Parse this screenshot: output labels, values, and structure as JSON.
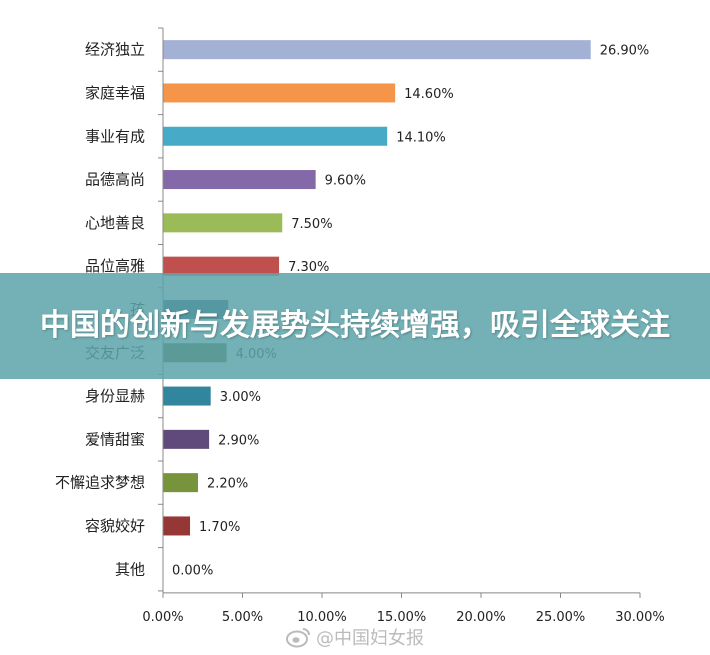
{
  "overlay": {
    "title": "中国的创新与发展势头持续增强，吸引全球关注"
  },
  "watermark": {
    "text": "@中国妇女报",
    "icon": "weibo-icon"
  },
  "chart_data": {
    "type": "bar",
    "orientation": "horizontal",
    "title": "",
    "xlabel": "",
    "ylabel": "",
    "xlim": [
      0,
      30
    ],
    "x_ticks": [
      "0.00%",
      "5.00%",
      "10.00%",
      "15.00%",
      "20.00%",
      "25.00%",
      "30.00%"
    ],
    "grid": false,
    "categories": [
      "经济独立",
      "家庭幸福",
      "事业有成",
      "品德高尚",
      "心地善良",
      "品位高雅",
      "孩",
      "交友广泛",
      "身份显赫",
      "爱情甜蜜",
      "不懈追求梦想",
      "容貌姣好",
      "其他"
    ],
    "values": [
      26.9,
      14.6,
      14.1,
      9.6,
      7.5,
      7.3,
      4.1,
      4.0,
      3.0,
      2.9,
      2.2,
      1.7,
      0.0
    ],
    "value_labels": [
      "26.90%",
      "14.60%",
      "14.10%",
      "9.60%",
      "7.50%",
      "7.30%",
      "",
      "4.00%",
      "3.00%",
      "2.90%",
      "2.20%",
      "1.70%",
      "0.00%"
    ],
    "colors": [
      "#a3b1d4",
      "#f4954a",
      "#47aac6",
      "#8369a8",
      "#9bbb59",
      "#c0504d",
      "#2c4d75",
      "#4f6228",
      "#31859c",
      "#604a7b",
      "#77933c",
      "#953735",
      "#4472c4"
    ]
  }
}
